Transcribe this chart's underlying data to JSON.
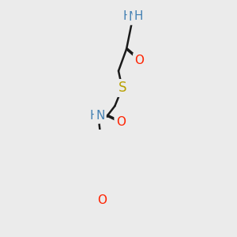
{
  "bg_color": "#ebebeb",
  "bond_color": "#1a1a1a",
  "atom_colors": {
    "N": "#4682b4",
    "O": "#ff2200",
    "S": "#b8a000",
    "H": "#4682b4"
  },
  "bond_width": 1.8,
  "font_size": 11
}
